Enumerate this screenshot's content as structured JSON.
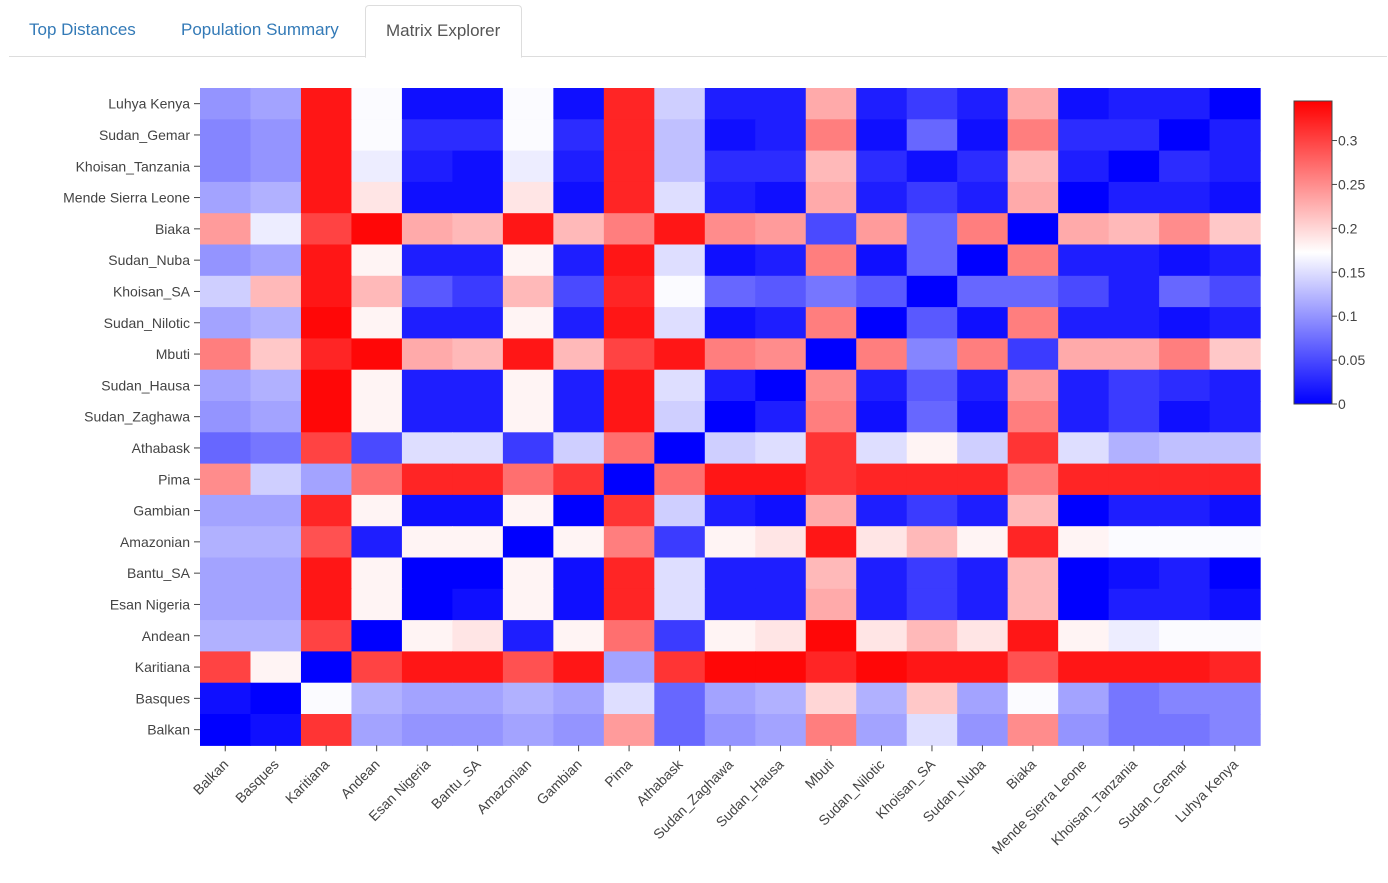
{
  "tabs": [
    {
      "label": "Top Distances",
      "active": false
    },
    {
      "label": "Population Summary",
      "active": false
    },
    {
      "label": "Matrix Explorer",
      "active": true
    }
  ],
  "chart_data": {
    "type": "heatmap",
    "title": "",
    "x_labels": [
      "Balkan",
      "Basques",
      "Karitiana",
      "Andean",
      "Esan Nigeria",
      "Bantu_SA",
      "Amazonian",
      "Gambian",
      "Pima",
      "Athabask",
      "Sudan_Zaghawa",
      "Sudan_Hausa",
      "Mbuti",
      "Sudan_Nilotic",
      "Khoisan_SA",
      "Sudan_Nuba",
      "Biaka",
      "Mende Sierra Leone",
      "Khoisan_Tanzania",
      "Sudan_Gemar",
      "Luhya Kenya"
    ],
    "y_labels": [
      "Luhya Kenya",
      "Sudan_Gemar",
      "Khoisan_Tanzania",
      "Mende Sierra Leone",
      "Biaka",
      "Sudan_Nuba",
      "Khoisan_SA",
      "Sudan_Nilotic",
      "Mbuti",
      "Sudan_Hausa",
      "Sudan_Zaghawa",
      "Athabask",
      "Pima",
      "Gambian",
      "Amazonian",
      "Bantu_SA",
      "Esan Nigeria",
      "Andean",
      "Karitiana",
      "Basques",
      "Balkan"
    ],
    "z": [
      [
        0.1,
        0.11,
        0.33,
        0.17,
        0.01,
        0.01,
        0.17,
        0.01,
        0.32,
        0.14,
        0.02,
        0.02,
        0.23,
        0.02,
        0.04,
        0.02,
        0.23,
        0.01,
        0.02,
        0.02,
        0.0
      ],
      [
        0.09,
        0.1,
        0.33,
        0.17,
        0.03,
        0.03,
        0.17,
        0.03,
        0.32,
        0.13,
        0.01,
        0.02,
        0.26,
        0.01,
        0.07,
        0.01,
        0.26,
        0.03,
        0.03,
        0.0,
        0.02
      ],
      [
        0.09,
        0.1,
        0.33,
        0.16,
        0.02,
        0.01,
        0.16,
        0.02,
        0.32,
        0.13,
        0.03,
        0.03,
        0.22,
        0.03,
        0.01,
        0.03,
        0.22,
        0.02,
        0.0,
        0.03,
        0.02
      ],
      [
        0.11,
        0.12,
        0.33,
        0.19,
        0.01,
        0.01,
        0.19,
        0.01,
        0.32,
        0.15,
        0.02,
        0.01,
        0.23,
        0.02,
        0.04,
        0.02,
        0.23,
        0.0,
        0.02,
        0.02,
        0.01
      ],
      [
        0.24,
        0.16,
        0.3,
        0.34,
        0.23,
        0.22,
        0.33,
        0.22,
        0.26,
        0.33,
        0.25,
        0.24,
        0.05,
        0.24,
        0.07,
        0.26,
        0.0,
        0.23,
        0.22,
        0.25,
        0.21
      ],
      [
        0.1,
        0.11,
        0.33,
        0.18,
        0.02,
        0.02,
        0.18,
        0.02,
        0.33,
        0.15,
        0.01,
        0.02,
        0.26,
        0.01,
        0.07,
        0.0,
        0.26,
        0.02,
        0.02,
        0.01,
        0.02
      ],
      [
        0.14,
        0.22,
        0.33,
        0.22,
        0.06,
        0.04,
        0.22,
        0.05,
        0.32,
        0.17,
        0.07,
        0.06,
        0.08,
        0.06,
        0.0,
        0.07,
        0.07,
        0.05,
        0.02,
        0.07,
        0.05
      ],
      [
        0.11,
        0.12,
        0.34,
        0.18,
        0.02,
        0.02,
        0.18,
        0.02,
        0.33,
        0.15,
        0.01,
        0.02,
        0.26,
        0.0,
        0.06,
        0.01,
        0.26,
        0.02,
        0.02,
        0.01,
        0.02
      ],
      [
        0.26,
        0.21,
        0.32,
        0.34,
        0.23,
        0.22,
        0.33,
        0.22,
        0.3,
        0.33,
        0.26,
        0.25,
        0.0,
        0.26,
        0.09,
        0.26,
        0.04,
        0.23,
        0.23,
        0.26,
        0.21
      ],
      [
        0.11,
        0.12,
        0.34,
        0.18,
        0.02,
        0.02,
        0.18,
        0.02,
        0.33,
        0.15,
        0.02,
        0.0,
        0.25,
        0.02,
        0.06,
        0.02,
        0.24,
        0.02,
        0.04,
        0.03,
        0.02
      ],
      [
        0.1,
        0.11,
        0.34,
        0.18,
        0.02,
        0.02,
        0.18,
        0.02,
        0.33,
        0.14,
        0.0,
        0.02,
        0.26,
        0.01,
        0.07,
        0.01,
        0.26,
        0.02,
        0.04,
        0.01,
        0.02
      ],
      [
        0.07,
        0.08,
        0.3,
        0.05,
        0.15,
        0.15,
        0.04,
        0.14,
        0.27,
        0.0,
        0.14,
        0.15,
        0.31,
        0.15,
        0.18,
        0.14,
        0.31,
        0.15,
        0.12,
        0.13,
        0.13
      ],
      [
        0.25,
        0.14,
        0.11,
        0.27,
        0.32,
        0.32,
        0.27,
        0.31,
        0.0,
        0.27,
        0.33,
        0.33,
        0.31,
        0.32,
        0.32,
        0.32,
        0.26,
        0.32,
        0.32,
        0.32,
        0.32
      ],
      [
        0.11,
        0.11,
        0.32,
        0.18,
        0.01,
        0.01,
        0.18,
        0.0,
        0.31,
        0.14,
        0.02,
        0.01,
        0.23,
        0.02,
        0.04,
        0.02,
        0.22,
        0.0,
        0.02,
        0.02,
        0.01
      ],
      [
        0.12,
        0.12,
        0.29,
        0.02,
        0.18,
        0.18,
        0.0,
        0.18,
        0.26,
        0.04,
        0.18,
        0.19,
        0.33,
        0.19,
        0.22,
        0.18,
        0.32,
        0.18,
        0.17,
        0.17,
        0.17
      ],
      [
        0.11,
        0.11,
        0.33,
        0.18,
        0.0,
        0.0,
        0.18,
        0.01,
        0.32,
        0.15,
        0.02,
        0.02,
        0.22,
        0.02,
        0.04,
        0.02,
        0.22,
        0.0,
        0.01,
        0.02,
        0.0
      ],
      [
        0.11,
        0.11,
        0.33,
        0.18,
        0.0,
        0.01,
        0.18,
        0.01,
        0.32,
        0.15,
        0.02,
        0.02,
        0.23,
        0.02,
        0.04,
        0.02,
        0.22,
        0.0,
        0.02,
        0.02,
        0.01
      ],
      [
        0.12,
        0.12,
        0.3,
        0.0,
        0.18,
        0.19,
        0.02,
        0.18,
        0.27,
        0.04,
        0.18,
        0.19,
        0.34,
        0.19,
        0.22,
        0.19,
        0.33,
        0.18,
        0.16,
        0.17,
        0.17
      ],
      [
        0.3,
        0.18,
        0.0,
        0.3,
        0.33,
        0.33,
        0.29,
        0.33,
        0.11,
        0.31,
        0.34,
        0.34,
        0.32,
        0.34,
        0.33,
        0.33,
        0.29,
        0.33,
        0.33,
        0.33,
        0.32
      ],
      [
        0.01,
        0.0,
        0.17,
        0.12,
        0.11,
        0.11,
        0.12,
        0.11,
        0.15,
        0.07,
        0.11,
        0.12,
        0.2,
        0.12,
        0.21,
        0.11,
        0.17,
        0.11,
        0.08,
        0.09,
        0.09
      ],
      [
        0.0,
        0.01,
        0.31,
        0.11,
        0.1,
        0.1,
        0.11,
        0.1,
        0.24,
        0.07,
        0.1,
        0.11,
        0.26,
        0.11,
        0.15,
        0.1,
        0.25,
        0.1,
        0.08,
        0.08,
        0.09
      ]
    ],
    "zmin": 0,
    "zmax": 0.345,
    "colorscale": [
      "#0000ff",
      "#ffffff",
      "#ff0000"
    ],
    "colorbar_ticks": [
      {
        "value": 0,
        "label": "0"
      },
      {
        "value": 0.05,
        "label": "0.05"
      },
      {
        "value": 0.1,
        "label": "0.1"
      },
      {
        "value": 0.15,
        "label": "0.15"
      },
      {
        "value": 0.2,
        "label": "0.2"
      },
      {
        "value": 0.25,
        "label": "0.25"
      },
      {
        "value": 0.3,
        "label": "0.3"
      }
    ],
    "xlabel": "",
    "ylabel": ""
  }
}
